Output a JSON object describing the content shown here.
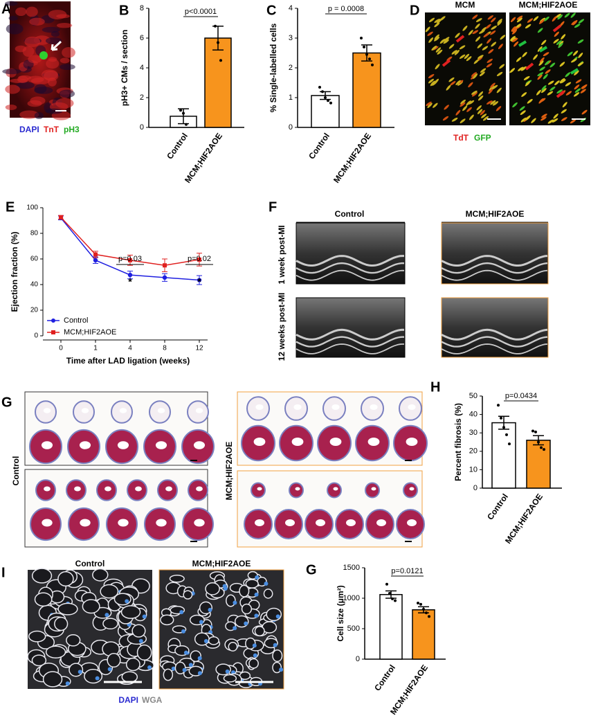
{
  "chart_data": [
    {
      "type": "bar",
      "letter": "B",
      "ylabel": "pH3+ CMs / section",
      "categories": [
        "Control",
        "MCM;HIF2AOE"
      ],
      "values": [
        0.75,
        6.0
      ],
      "errors": [
        0.5,
        0.8
      ],
      "colors": [
        "#ffffff",
        "#f7941d"
      ],
      "points": [
        [
          1.15,
          0.95,
          0.2
        ],
        [
          6.8,
          5.7,
          4.5
        ]
      ],
      "ylim": [
        0,
        8
      ],
      "yticks": [
        0,
        2,
        4,
        6,
        8
      ],
      "annotation": "p<0.0001"
    },
    {
      "type": "bar",
      "letter": "C",
      "ylabel": "% Single-labelled cells",
      "categories": [
        "Control",
        "MCM;HIF2AOE"
      ],
      "values": [
        1.07,
        2.5
      ],
      "errors": [
        0.13,
        0.27
      ],
      "colors": [
        "#ffffff",
        "#f7941d"
      ],
      "points": [
        [
          1.35,
          1.2,
          1.0,
          0.9,
          0.82
        ],
        [
          3.0,
          2.7,
          2.45,
          2.3,
          2.1
        ]
      ],
      "ylim": [
        0,
        4
      ],
      "yticks": [
        0,
        1,
        2,
        3,
        4
      ],
      "annotation": "p = 0.0008"
    },
    {
      "type": "line",
      "letter": "E",
      "ylabel": "Ejection fraction (%)",
      "xlabel": "Time after LAD ligation (weeks)",
      "categories": [
        "0",
        "1",
        "4",
        "8",
        "12"
      ],
      "ylim": [
        0,
        100
      ],
      "yticks": [
        0,
        20,
        40,
        60,
        80,
        100
      ],
      "series": [
        {
          "name": "Control",
          "color": "#1f1fe0",
          "values": [
            92,
            59,
            47.5,
            45.5,
            43.5
          ],
          "errors": [
            1.5,
            2.5,
            3,
            3,
            3.5
          ]
        },
        {
          "name": "MCM;HIF2AOE",
          "color": "#e0201f",
          "values": [
            92.5,
            63.5,
            59,
            55,
            59.5
          ],
          "errors": [
            1.5,
            2.5,
            4,
            5,
            5
          ]
        }
      ],
      "annotations": [
        "p=0.03",
        "*",
        "p=0.02",
        "*"
      ]
    },
    {
      "type": "bar",
      "letter": "H",
      "ylabel": "Percent fibrosis (%)",
      "categories": [
        "Control",
        "MCM;HIF2AOE"
      ],
      "values": [
        35.5,
        26
      ],
      "errors": [
        3.5,
        2.5
      ],
      "colors": [
        "#ffffff",
        "#f7941d"
      ],
      "points": [
        [
          45,
          38,
          33,
          29,
          24
        ],
        [
          31,
          30.5,
          25,
          22,
          21
        ]
      ],
      "ylim": [
        0,
        50
      ],
      "yticks": [
        0,
        10,
        20,
        30,
        40,
        50
      ],
      "annotation": "p=0.0434"
    },
    {
      "type": "bar",
      "letter": "G",
      "ylabel": "Cell size (μm²)",
      "categories": [
        "Control",
        "MCM;HIF2AOE"
      ],
      "values": [
        1060,
        810
      ],
      "errors": [
        60,
        50
      ],
      "colors": [
        "#ffffff",
        "#f7941d"
      ],
      "points": [
        [
          1230,
          1080,
          990,
          960
        ],
        [
          920,
          900,
          820,
          760,
          700
        ]
      ],
      "ylim": [
        0,
        1500
      ],
      "yticks": [
        0,
        500,
        1000,
        1500
      ],
      "annotation": "p=0.0121"
    }
  ],
  "figure": {
    "A": {
      "letter": "A",
      "stains": [
        "DAPI",
        "TnT",
        "pH3"
      ]
    },
    "D": {
      "letter": "D",
      "titles": [
        "MCM",
        "MCM;HIF2AOE"
      ],
      "stains": [
        "TdT",
        "GFP"
      ]
    },
    "F": {
      "letter": "F",
      "columns": [
        "Control",
        "MCM;HIF2AOE"
      ],
      "rows": [
        "1 week post-MI",
        "12 weeks post-MI"
      ]
    },
    "G": {
      "letter": "G",
      "groups": [
        "Control",
        "MCM;HIF2AOE"
      ]
    },
    "I": {
      "letter": "I",
      "columns": [
        "Control",
        "MCM;HIF2AOE"
      ],
      "stains": [
        "DAPI",
        "WGA"
      ]
    }
  }
}
